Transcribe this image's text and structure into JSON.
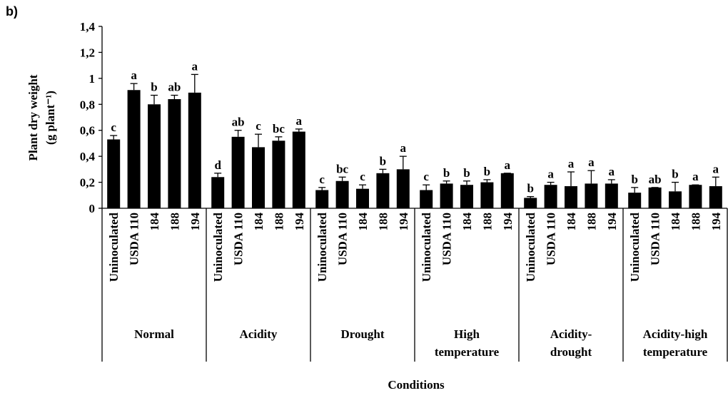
{
  "chart_data": {
    "type": "bar",
    "panel_label": "b)",
    "ylabel": [
      "Plant dry weight",
      "(g plant⁻¹)"
    ],
    "xlabel": "Conditions",
    "ylim": [
      0,
      1.4
    ],
    "yticks": [
      0,
      {
        "value": 0.2,
        "label": "0,2"
      },
      {
        "value": 0.4,
        "label": "0,4"
      },
      {
        "value": 0.6,
        "label": "0,6"
      },
      {
        "value": 0.8,
        "label": "0,8"
      },
      1,
      {
        "value": 1.2,
        "label": "1,2"
      },
      {
        "value": 1.4,
        "label": "1,4"
      }
    ],
    "color": "#000000",
    "groups": [
      {
        "name": [
          "Normal"
        ],
        "categories": [
          "Uninoculated",
          "USDA 110",
          "184",
          "188",
          "194"
        ],
        "values": [
          0.53,
          0.91,
          0.8,
          0.84,
          0.89
        ],
        "errors": [
          0.03,
          0.05,
          0.07,
          0.03,
          0.14
        ],
        "letters": [
          "c",
          "a",
          "b",
          "ab",
          "a"
        ]
      },
      {
        "name": [
          "Acidity"
        ],
        "categories": [
          "Uninoculated",
          "USDA 110",
          "184",
          "188",
          "194"
        ],
        "values": [
          0.24,
          0.55,
          0.47,
          0.52,
          0.59
        ],
        "errors": [
          0.03,
          0.05,
          0.1,
          0.03,
          0.02
        ],
        "letters": [
          "d",
          "ab",
          "c",
          "bc",
          "a"
        ]
      },
      {
        "name": [
          "Drought"
        ],
        "categories": [
          "Uninoculated",
          "USDA 110",
          "184",
          "188",
          "194"
        ],
        "values": [
          0.14,
          0.21,
          0.15,
          0.27,
          0.3
        ],
        "errors": [
          0.02,
          0.03,
          0.03,
          0.03,
          0.1
        ],
        "letters": [
          "c",
          "bc",
          "c",
          "b",
          "a"
        ]
      },
      {
        "name": [
          "High",
          "temperature"
        ],
        "categories": [
          "Uninoculated",
          "USDA 110",
          "184",
          "188",
          "194"
        ],
        "values": [
          0.14,
          0.19,
          0.18,
          0.2,
          0.27
        ],
        "errors": [
          0.04,
          0.02,
          0.03,
          0.02,
          0
        ],
        "letters": [
          "c",
          "b",
          "b",
          "b",
          "a"
        ]
      },
      {
        "name": [
          "Acidity-",
          "drought"
        ],
        "categories": [
          "Uninoculated",
          "USDA 110",
          "184",
          "188",
          "194"
        ],
        "values": [
          0.08,
          0.18,
          0.17,
          0.19,
          0.19
        ],
        "errors": [
          0.01,
          0.02,
          0.11,
          0.1,
          0.03
        ],
        "letters": [
          "b",
          "a",
          "a",
          "a",
          "a"
        ]
      },
      {
        "name": [
          "Acidity-high",
          "temperature"
        ],
        "categories": [
          "Uninoculated",
          "USDA 110",
          "184",
          "188",
          "194"
        ],
        "values": [
          0.12,
          0.16,
          0.13,
          0.18,
          0.17
        ],
        "errors": [
          0.04,
          0,
          0.07,
          0,
          0.07
        ],
        "letters": [
          "b",
          "ab",
          "b",
          "a",
          "a"
        ]
      }
    ]
  }
}
